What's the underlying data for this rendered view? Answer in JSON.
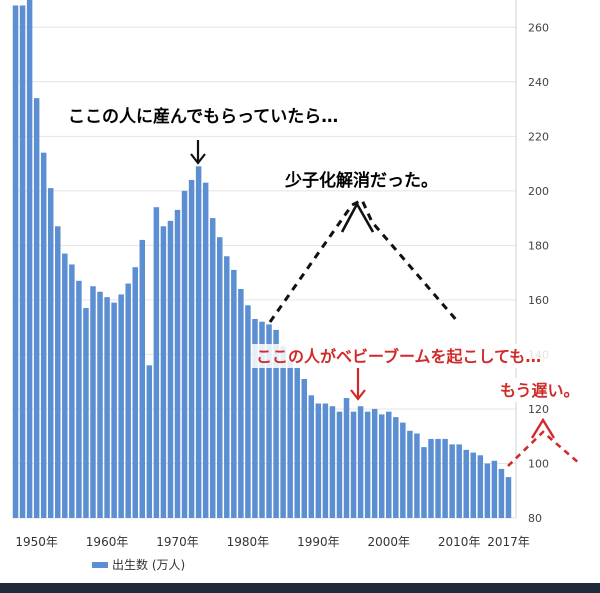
{
  "chart_data": {
    "type": "bar",
    "title": "",
    "xlabel": "",
    "ylabel": "",
    "ylim": [
      80,
      270
    ],
    "y_ticks": [
      80,
      100,
      120,
      140,
      160,
      180,
      200,
      220,
      240,
      260
    ],
    "x_tick_labels": [
      "1950年",
      "1960年",
      "1970年",
      "1980年",
      "1990年",
      "2000年",
      "2010年",
      "2017年"
    ],
    "x_tick_years": [
      1950,
      1960,
      1970,
      1980,
      1990,
      2000,
      2010,
      2017
    ],
    "grid": true,
    "legend_position": "bottom-left",
    "series": [
      {
        "name": "出生数 (万人)",
        "color": "#5b8fd2",
        "x": [
          1947,
          1948,
          1949,
          1950,
          1951,
          1952,
          1953,
          1954,
          1955,
          1956,
          1957,
          1958,
          1959,
          1960,
          1961,
          1962,
          1963,
          1964,
          1965,
          1966,
          1967,
          1968,
          1969,
          1970,
          1971,
          1972,
          1973,
          1974,
          1975,
          1976,
          1977,
          1978,
          1979,
          1980,
          1981,
          1982,
          1983,
          1984,
          1985,
          1986,
          1987,
          1988,
          1989,
          1990,
          1991,
          1992,
          1993,
          1994,
          1995,
          1996,
          1997,
          1998,
          1999,
          2000,
          2001,
          2002,
          2003,
          2004,
          2005,
          2006,
          2007,
          2008,
          2009,
          2010,
          2011,
          2012,
          2013,
          2014,
          2015,
          2016,
          2017
        ],
        "values": [
          268,
          268,
          270,
          234,
          214,
          201,
          187,
          177,
          173,
          167,
          157,
          165,
          163,
          161,
          159,
          162,
          166,
          172,
          182,
          136,
          194,
          187,
          189,
          193,
          200,
          204,
          209,
          203,
          190,
          183,
          176,
          171,
          164,
          158,
          153,
          152,
          151,
          149,
          143,
          138,
          135,
          131,
          125,
          122,
          122,
          121,
          119,
          124,
          119,
          121,
          119,
          120,
          118,
          119,
          117,
          115,
          112,
          111,
          106,
          109,
          109,
          109,
          107,
          107,
          105,
          104,
          103,
          100,
          101,
          98,
          95
        ]
      }
    ],
    "annotations": [
      {
        "text": "ここの人に産んでもらっていたら…",
        "color": "#111111"
      },
      {
        "text": "少子化解消だった。",
        "color": "#111111"
      },
      {
        "text": "ここの人がベビーブームを起こしても…",
        "color": "#d12a2a"
      },
      {
        "text": "もう遅い。",
        "color": "#d12a2a"
      }
    ]
  }
}
